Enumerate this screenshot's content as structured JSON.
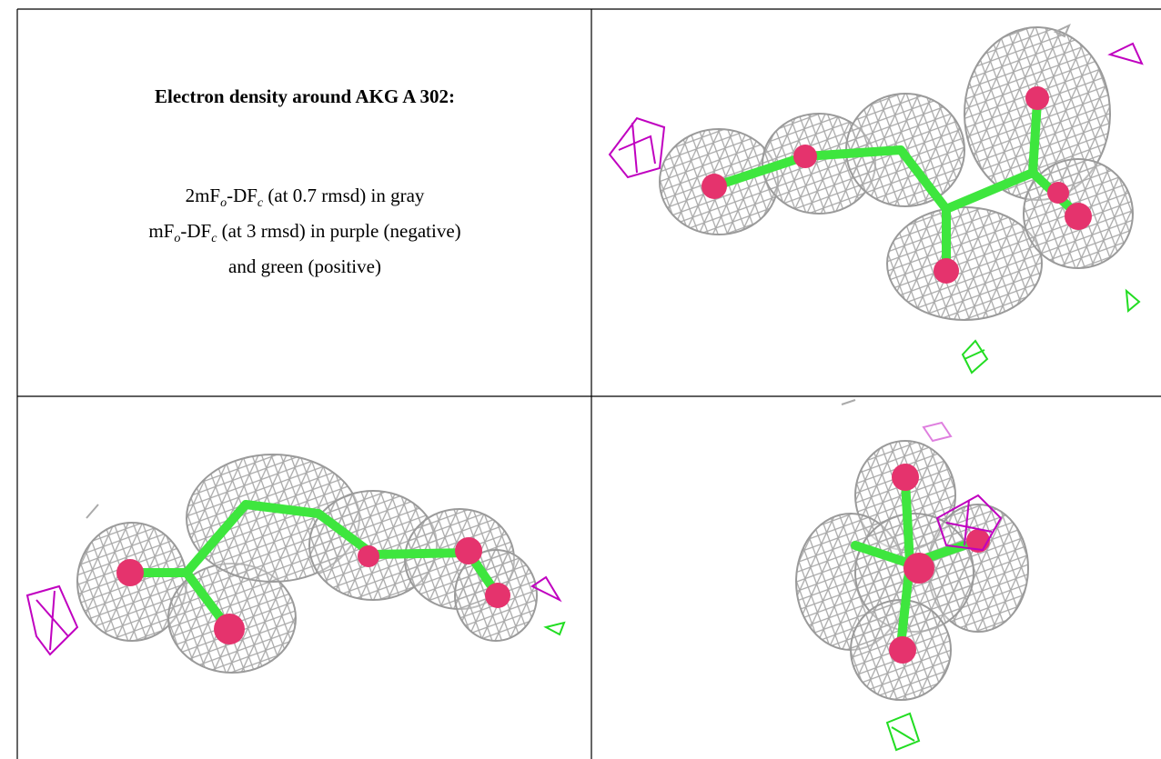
{
  "title": "Electron density around AKG A 302:",
  "legend": [
    {
      "parts": [
        "2mF",
        "o",
        "-DF",
        "c",
        " (at 0.7 rmsd) in gray"
      ]
    },
    {
      "parts": [
        "mF",
        "o",
        "-DF",
        "c",
        " (at 3 rmsd) in purple (negative)"
      ]
    },
    {
      "parts": [
        "and green (positive)"
      ]
    }
  ]
}
